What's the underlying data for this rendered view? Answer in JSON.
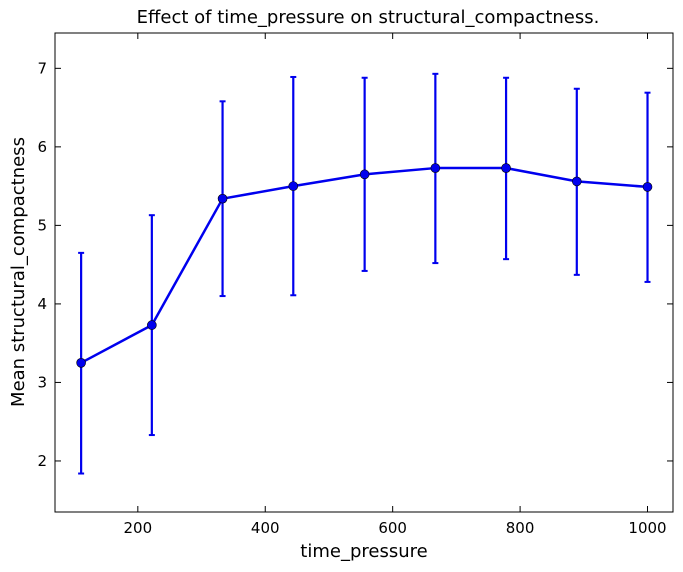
{
  "chart_data": {
    "type": "line",
    "title": "Effect of time_pressure on structural_compactness.",
    "xlabel": "time_pressure",
    "ylabel": "Mean structural_compactness",
    "xlim": [
      70,
      1040
    ],
    "ylim": [
      1.35,
      7.45
    ],
    "xticks": [
      200,
      400,
      600,
      800,
      1000
    ],
    "yticks": [
      2,
      3,
      4,
      5,
      6,
      7
    ],
    "grid": false,
    "legend": "none",
    "color": "#0000ee",
    "series": [
      {
        "x": [
          111,
          222,
          333,
          444,
          556,
          667,
          778,
          889,
          1000
        ],
        "values": [
          3.25,
          3.73,
          5.34,
          5.5,
          5.65,
          5.73,
          5.73,
          5.56,
          5.49
        ],
        "err_low": [
          1.84,
          2.33,
          4.1,
          4.11,
          4.42,
          4.52,
          4.57,
          4.37,
          4.28
        ],
        "err_high": [
          4.65,
          5.13,
          6.58,
          6.89,
          6.88,
          6.93,
          6.88,
          6.74,
          6.69
        ]
      }
    ]
  }
}
